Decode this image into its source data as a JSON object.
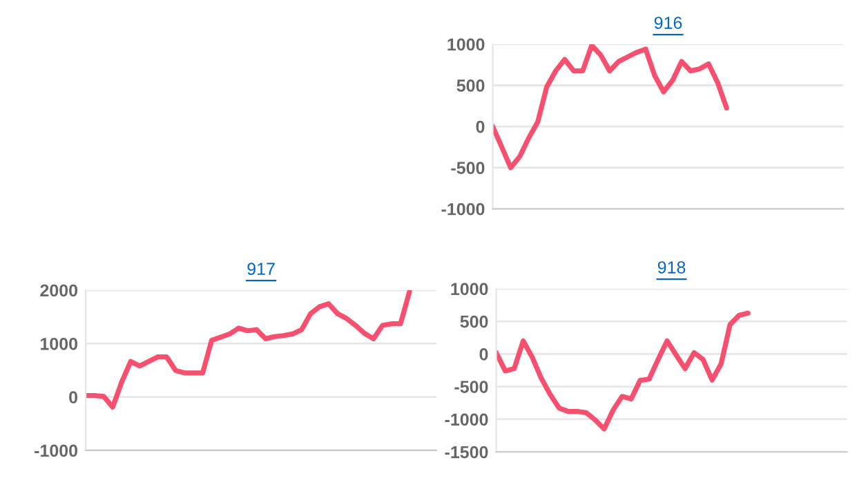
{
  "chart_data": [
    {
      "type": "line",
      "title": "916",
      "categories": [
        null,
        null,
        null,
        null,
        null,
        null,
        null,
        null,
        null,
        null,
        null,
        null,
        null,
        null,
        null,
        null,
        null,
        null,
        null,
        null,
        null,
        null,
        null,
        null,
        null,
        null,
        null,
        null,
        null,
        null,
        null,
        null,
        null,
        null,
        null,
        null,
        null,
        null,
        null,
        null
      ],
      "series": [
        {
          "color": "#f7506e",
          "values": [
            0,
            -250,
            -500,
            -365,
            -140,
            55,
            480,
            675,
            815,
            675,
            675,
            985,
            870,
            675,
            790,
            845,
            900,
            940,
            620,
            420,
            560,
            790,
            675,
            700,
            760,
            535,
            225,
            null,
            null,
            null,
            null,
            null,
            null,
            null,
            null,
            null,
            null,
            null,
            null,
            null
          ]
        }
      ],
      "ylim": [
        -1000,
        1000
      ],
      "yticks": [
        -1000,
        -500,
        0,
        500,
        1000
      ],
      "grid": "y",
      "tick_labels": "y"
    },
    {
      "type": "line",
      "title": "917",
      "categories": [
        null,
        null,
        null,
        null,
        null,
        null,
        null,
        null,
        null,
        null,
        null,
        null,
        null,
        null,
        null,
        null,
        null,
        null,
        null,
        null,
        null,
        null,
        null,
        null,
        null,
        null,
        null,
        null,
        null,
        null,
        null,
        null,
        null,
        null,
        null,
        null,
        null,
        null,
        null,
        null
      ],
      "series": [
        {
          "color": "#f7506e",
          "values": [
            25,
            25,
            10,
            -190,
            280,
            665,
            580,
            665,
            750,
            750,
            495,
            450,
            450,
            450,
            1060,
            1120,
            1180,
            1290,
            1240,
            1260,
            1090,
            1130,
            1150,
            1180,
            1260,
            1560,
            1690,
            1745,
            1560,
            1470,
            1340,
            1190,
            1090,
            1340,
            1370,
            1370,
            1970,
            null,
            null,
            null
          ]
        }
      ],
      "ylim": [
        -1000,
        2000
      ],
      "yticks": [
        -1000,
        0,
        1000,
        2000
      ],
      "grid": "y",
      "tick_labels": "y"
    },
    {
      "type": "line",
      "title": "918",
      "categories": [
        null,
        null,
        null,
        null,
        null,
        null,
        null,
        null,
        null,
        null,
        null,
        null,
        null,
        null,
        null,
        null,
        null,
        null,
        null,
        null,
        null,
        null,
        null,
        null,
        null,
        null,
        null,
        null,
        null,
        null,
        null,
        null,
        null,
        null,
        null,
        null,
        null,
        null,
        null,
        null
      ],
      "series": [
        {
          "color": "#f7506e",
          "values": [
            20,
            -260,
            -225,
            200,
            -50,
            -370,
            -620,
            -830,
            -880,
            -880,
            -900,
            -1010,
            -1150,
            -860,
            -650,
            -690,
            -405,
            -385,
            -85,
            200,
            -15,
            -225,
            20,
            -85,
            -400,
            -155,
            450,
            590,
            625,
            null,
            null,
            null,
            null,
            null,
            null,
            null,
            null,
            null,
            null,
            null
          ]
        }
      ],
      "ylim": [
        -1500,
        1000
      ],
      "yticks": [
        -1500,
        -1000,
        -500,
        0,
        500,
        1000
      ],
      "grid": "y",
      "tick_labels": "y"
    }
  ]
}
